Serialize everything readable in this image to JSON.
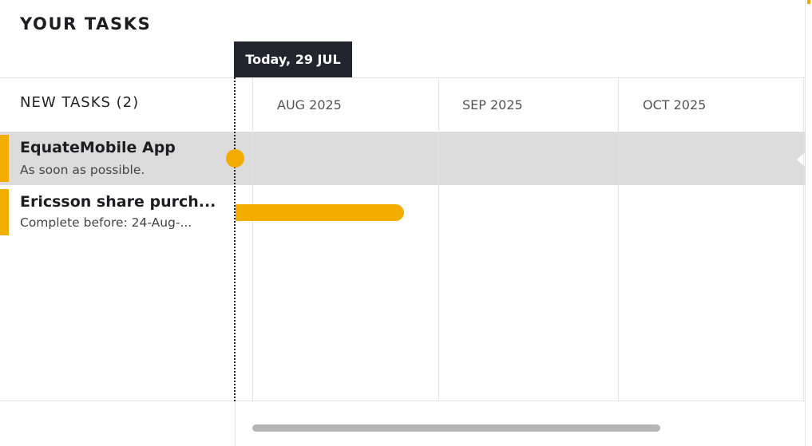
{
  "header": {
    "title": "YOUR TASKS"
  },
  "today": {
    "label": "Today,  29 JUL"
  },
  "section": {
    "title": "NEW TASKS (2)"
  },
  "timeline": {
    "months": [
      "AUG 2025",
      "SEP 2025",
      "OCT 2025"
    ]
  },
  "tasks": [
    {
      "name": "EquateMobile App",
      "subtitle": "As soon as possible.",
      "selected": true
    },
    {
      "name": "Ericsson share purch...",
      "subtitle": "Complete before: 24-Aug-...",
      "selected": false
    }
  ],
  "colors": {
    "accent": "#f2ad00",
    "today_bg": "#22252d",
    "selected_row": "#dcdcdc"
  }
}
